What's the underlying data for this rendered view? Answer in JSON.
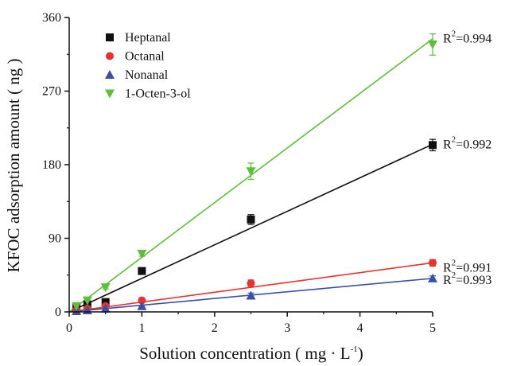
{
  "chart_data": {
    "type": "scatter",
    "xlabel": "Solution concentration ( mg · L",
    "xlabel_sup": "-1",
    "xlabel_end": ")",
    "ylabel": "KFOC adsorption amount ( ng )",
    "xlim": [
      0,
      5
    ],
    "ylim": [
      0,
      360
    ],
    "xticks": [
      "0",
      "1",
      "2",
      "3",
      "4",
      "5"
    ],
    "yticks": [
      "0",
      "90",
      "180",
      "270",
      "360"
    ],
    "legend_position": "top-left",
    "series": [
      {
        "name": "Heptanal",
        "color": "#111111",
        "marker": "square",
        "x": [
          0.1,
          0.25,
          0.5,
          1,
          2.5,
          5
        ],
        "y": [
          5,
          9,
          12,
          50,
          113,
          204
        ],
        "err": [
          2,
          2,
          2,
          3,
          6,
          7
        ],
        "fit": [
          0,
          205
        ],
        "r2_prefix": "R",
        "r2_sup": "2",
        "r2_value": "=0.992"
      },
      {
        "name": "Octanal",
        "color": "#e8322f",
        "marker": "circle",
        "x": [
          0.1,
          0.25,
          0.5,
          1,
          2.5,
          5
        ],
        "y": [
          2,
          4,
          7,
          14,
          35,
          60
        ],
        "err": [
          1,
          1,
          1,
          2,
          4,
          4
        ],
        "fit": [
          0,
          60
        ],
        "r2_prefix": "R",
        "r2_sup": "2",
        "r2_value": "=0.991"
      },
      {
        "name": "Nonanal",
        "color": "#3a4fa8",
        "marker": "triangle-up",
        "x": [
          0.1,
          0.25,
          0.5,
          1,
          2.5,
          5
        ],
        "y": [
          1,
          2,
          4,
          7,
          20,
          41
        ],
        "err": [
          1,
          1,
          1,
          1,
          3,
          3
        ],
        "fit": [
          0,
          41
        ],
        "r2_prefix": "R",
        "r2_sup": "2",
        "r2_value": "=0.993"
      },
      {
        "name": "1-Octen-3-ol",
        "color": "#5cbf3a",
        "marker": "triangle-down",
        "x": [
          0.1,
          0.25,
          0.5,
          1,
          2.5,
          5
        ],
        "y": [
          7,
          14,
          30,
          71,
          172,
          327
        ],
        "err": [
          2,
          2,
          2,
          3,
          10,
          13
        ],
        "fit": [
          0,
          334
        ],
        "r2_prefix": "R",
        "r2_sup": "2",
        "r2_value": "=0.994"
      }
    ]
  }
}
